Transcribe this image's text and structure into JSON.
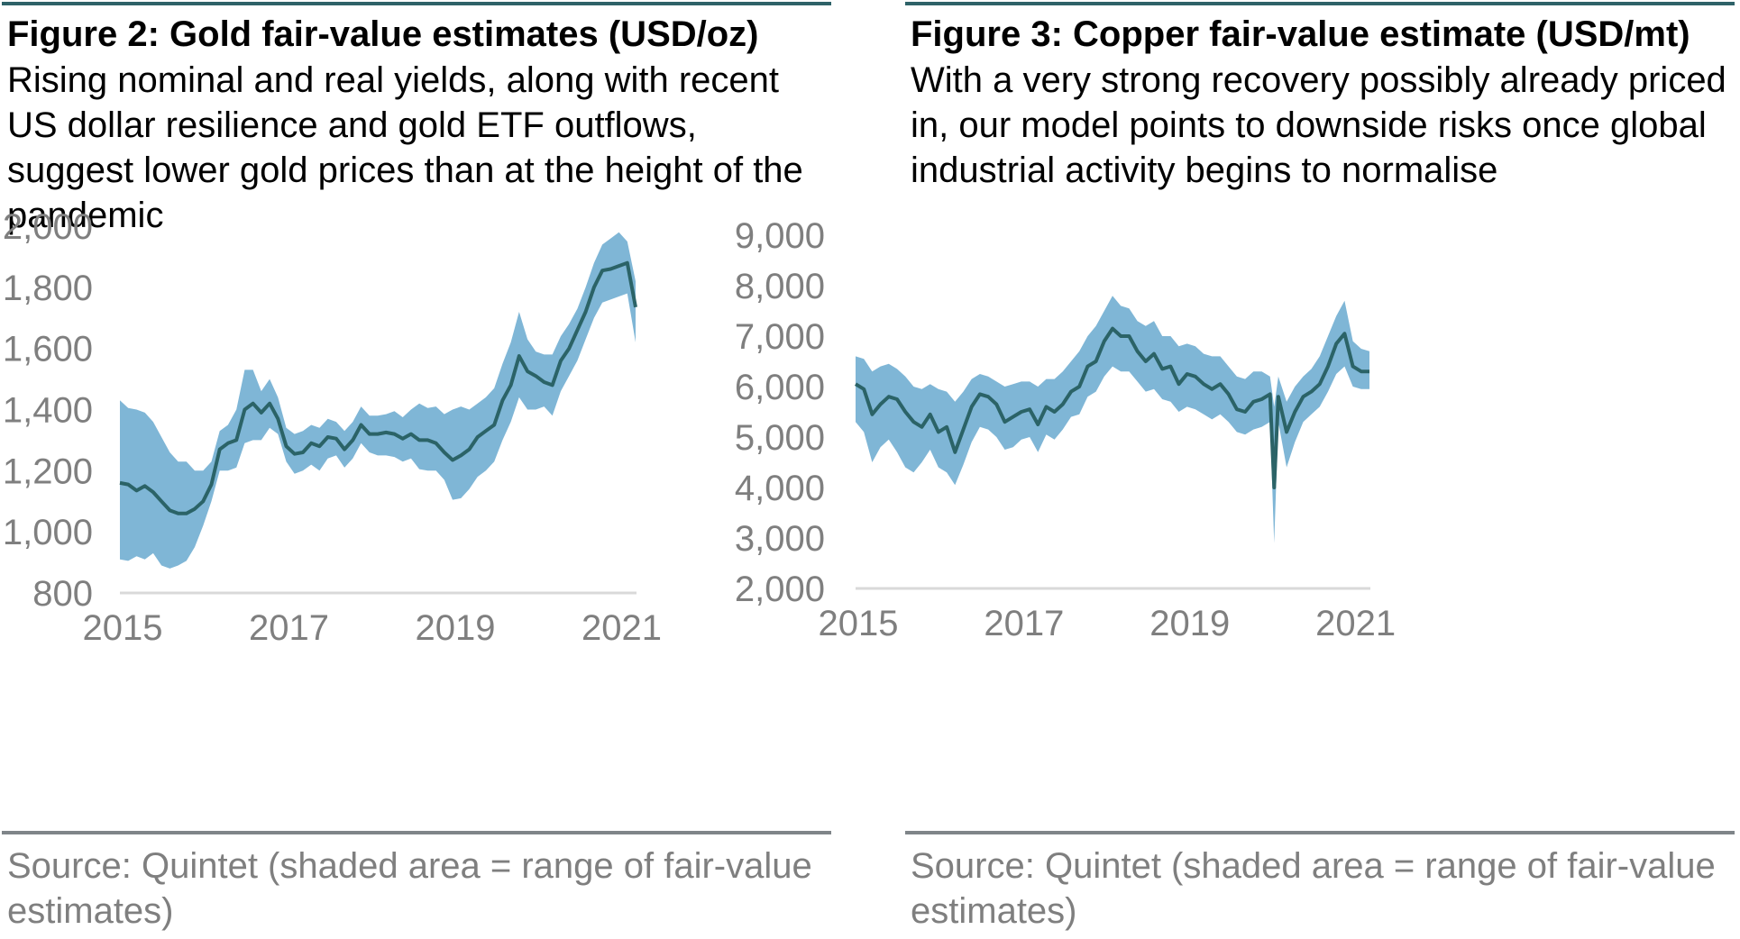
{
  "panels": [
    {
      "title": "Figure 2: Gold fair-value estimates (USD/oz)",
      "subtitle": "Rising nominal and real yields, along with recent US dollar resilience and gold ETF outflows, suggest lower gold prices than at the height of the pandemic",
      "source": "Source: Quintet (shaded area = range of fair-value estimates)"
    },
    {
      "title": "Figure 3: Copper fair-value estimate (USD/mt)",
      "subtitle": "With a very strong recovery possibly already priced in, our model points to downside risks once global industrial activity begins to normalise",
      "source": "Source: Quintet (shaded area = range of fair-value estimates)"
    }
  ],
  "colors": {
    "band": "#7fb6d6",
    "line": "#2b6367",
    "axis": "#d9d9d9",
    "tick": "#7f7f7f",
    "rule_top": "#2e6268",
    "rule_bottom": "#7f8589"
  },
  "chart_data": [
    {
      "type": "area",
      "title": "Gold fair-value estimates (USD/oz)",
      "xlabel": "",
      "ylabel": "",
      "xlim": [
        2015,
        2021.3
      ],
      "ylim": [
        800,
        2000
      ],
      "yticks": [
        800,
        1000,
        1200,
        1400,
        1600,
        1800,
        2000
      ],
      "ytick_labels": [
        "800",
        "1,000",
        "1,200",
        "1,400",
        "1,600",
        "1,800",
        "2,000"
      ],
      "xticks": [
        2015,
        2017,
        2019,
        2021
      ],
      "xtick_labels": [
        "2015",
        "2017",
        "2019",
        "2021"
      ],
      "grid": false,
      "x": [
        2015.0,
        2015.1,
        2015.2,
        2015.3,
        2015.4,
        2015.5,
        2015.6,
        2015.7,
        2015.8,
        2015.9,
        2016.0,
        2016.1,
        2016.2,
        2016.3,
        2016.4,
        2016.5,
        2016.6,
        2016.7,
        2016.8,
        2016.9,
        2017.0,
        2017.1,
        2017.2,
        2017.3,
        2017.4,
        2017.5,
        2017.6,
        2017.7,
        2017.8,
        2017.9,
        2018.0,
        2018.1,
        2018.2,
        2018.3,
        2018.4,
        2018.5,
        2018.6,
        2018.7,
        2018.8,
        2018.9,
        2019.0,
        2019.1,
        2019.2,
        2019.3,
        2019.4,
        2019.5,
        2019.6,
        2019.7,
        2019.8,
        2019.9,
        2020.0,
        2020.1,
        2020.2,
        2020.3,
        2020.4,
        2020.5,
        2020.6,
        2020.7,
        2020.8,
        2020.9,
        2021.0,
        2021.1,
        2021.2
      ],
      "series": [
        {
          "name": "",
          "values": [
            1160,
            1155,
            1135,
            1150,
            1130,
            1100,
            1070,
            1060,
            1060,
            1075,
            1100,
            1155,
            1270,
            1290,
            1300,
            1400,
            1420,
            1390,
            1420,
            1370,
            1280,
            1255,
            1260,
            1290,
            1280,
            1310,
            1305,
            1270,
            1300,
            1350,
            1320,
            1320,
            1325,
            1320,
            1305,
            1320,
            1300,
            1300,
            1290,
            1260,
            1235,
            1250,
            1270,
            1310,
            1330,
            1350,
            1430,
            1480,
            1575,
            1525,
            1510,
            1490,
            1480,
            1560,
            1600,
            1660,
            1720,
            1800,
            1855,
            1860,
            1870,
            1880,
            1735
          ]
        },
        {
          "name": "",
          "values": [
            1430,
            1405,
            1400,
            1390,
            1360,
            1310,
            1260,
            1230,
            1230,
            1200,
            1200,
            1230,
            1330,
            1350,
            1400,
            1530,
            1530,
            1460,
            1500,
            1440,
            1340,
            1320,
            1330,
            1350,
            1340,
            1370,
            1360,
            1330,
            1360,
            1410,
            1380,
            1380,
            1385,
            1395,
            1375,
            1400,
            1420,
            1405,
            1410,
            1385,
            1400,
            1410,
            1400,
            1420,
            1440,
            1470,
            1550,
            1620,
            1720,
            1630,
            1590,
            1580,
            1580,
            1640,
            1680,
            1730,
            1800,
            1880,
            1940,
            1960,
            1980,
            1950,
            1820
          ]
        },
        {
          "name": "",
          "values": [
            910,
            905,
            920,
            910,
            930,
            890,
            880,
            890,
            905,
            950,
            1020,
            1100,
            1200,
            1200,
            1210,
            1290,
            1300,
            1300,
            1340,
            1320,
            1230,
            1190,
            1200,
            1220,
            1200,
            1240,
            1250,
            1210,
            1240,
            1290,
            1260,
            1250,
            1250,
            1245,
            1230,
            1240,
            1205,
            1200,
            1200,
            1170,
            1105,
            1110,
            1140,
            1180,
            1200,
            1230,
            1300,
            1360,
            1440,
            1400,
            1400,
            1410,
            1380,
            1460,
            1510,
            1560,
            1630,
            1700,
            1750,
            1760,
            1770,
            1780,
            1620
          ]
        }
      ],
      "series_roles": [
        "estimate",
        "range_upper",
        "range_lower"
      ]
    },
    {
      "type": "area",
      "title": "Copper fair-value estimate (USD/mt)",
      "xlabel": "",
      "ylabel": "",
      "xlim": [
        2015,
        2021.3
      ],
      "ylim": [
        2000,
        9000
      ],
      "yticks": [
        2000,
        3000,
        4000,
        5000,
        6000,
        7000,
        8000,
        9000
      ],
      "ytick_labels": [
        "2,000",
        "3,000",
        "4,000",
        "5,000",
        "6,000",
        "7,000",
        "8,000",
        "9,000"
      ],
      "xticks": [
        2015,
        2017,
        2019,
        2021
      ],
      "xtick_labels": [
        "2015",
        "2017",
        "2019",
        "2021"
      ],
      "grid": false,
      "x": [
        2015.0,
        2015.1,
        2015.2,
        2015.3,
        2015.4,
        2015.5,
        2015.6,
        2015.7,
        2015.8,
        2015.9,
        2016.0,
        2016.1,
        2016.2,
        2016.3,
        2016.4,
        2016.5,
        2016.6,
        2016.7,
        2016.8,
        2016.9,
        2017.0,
        2017.1,
        2017.2,
        2017.3,
        2017.4,
        2017.5,
        2017.6,
        2017.7,
        2017.8,
        2017.9,
        2018.0,
        2018.1,
        2018.2,
        2018.3,
        2018.4,
        2018.5,
        2018.6,
        2018.7,
        2018.8,
        2018.9,
        2019.0,
        2019.1,
        2019.2,
        2019.3,
        2019.4,
        2019.5,
        2019.6,
        2019.7,
        2019.8,
        2019.9,
        2020.0,
        2020.05,
        2020.1,
        2020.2,
        2020.3,
        2020.4,
        2020.5,
        2020.6,
        2020.7,
        2020.8,
        2020.9,
        2021.0,
        2021.1,
        2021.2
      ],
      "series": [
        {
          "name": "",
          "values": [
            6050,
            5950,
            5450,
            5650,
            5800,
            5750,
            5500,
            5300,
            5200,
            5450,
            5100,
            5200,
            4700,
            5150,
            5600,
            5850,
            5800,
            5650,
            5300,
            5400,
            5500,
            5550,
            5250,
            5600,
            5500,
            5650,
            5900,
            6000,
            6400,
            6500,
            6900,
            7150,
            7000,
            7000,
            6700,
            6500,
            6650,
            6350,
            6400,
            6050,
            6250,
            6200,
            6050,
            5950,
            6050,
            5850,
            5550,
            5500,
            5700,
            5750,
            5850,
            4000,
            5800,
            5100,
            5500,
            5800,
            5900,
            6050,
            6400,
            6850,
            7050,
            6400,
            6300,
            6300
          ]
        },
        {
          "name": "",
          "values": [
            6600,
            6550,
            6300,
            6400,
            6450,
            6350,
            6200,
            6000,
            5950,
            6050,
            5950,
            5900,
            5700,
            5900,
            6150,
            6250,
            6200,
            6100,
            6000,
            6050,
            6100,
            6100,
            6000,
            6150,
            6150,
            6300,
            6500,
            6700,
            7000,
            7200,
            7500,
            7800,
            7600,
            7550,
            7300,
            7200,
            7300,
            7000,
            7000,
            6800,
            6850,
            6800,
            6650,
            6600,
            6600,
            6400,
            6200,
            6150,
            6300,
            6300,
            6200,
            5600,
            6200,
            5700,
            6000,
            6200,
            6350,
            6600,
            7000,
            7400,
            7700,
            6900,
            6750,
            6700
          ]
        },
        {
          "name": "",
          "values": [
            5300,
            5100,
            4500,
            4800,
            4950,
            4700,
            4400,
            4300,
            4500,
            4750,
            4400,
            4300,
            4050,
            4450,
            4900,
            5200,
            5150,
            5000,
            4750,
            4800,
            4950,
            5000,
            4700,
            5050,
            4950,
            5150,
            5400,
            5450,
            5800,
            5900,
            6200,
            6400,
            6300,
            6300,
            6100,
            5900,
            5950,
            5750,
            5700,
            5500,
            5600,
            5550,
            5450,
            5350,
            5450,
            5300,
            5100,
            5050,
            5150,
            5200,
            5300,
            2900,
            5300,
            4400,
            4900,
            5300,
            5450,
            5600,
            5900,
            6250,
            6400,
            6000,
            5950,
            5950
          ]
        }
      ],
      "series_roles": [
        "estimate",
        "range_upper",
        "range_lower"
      ]
    }
  ]
}
